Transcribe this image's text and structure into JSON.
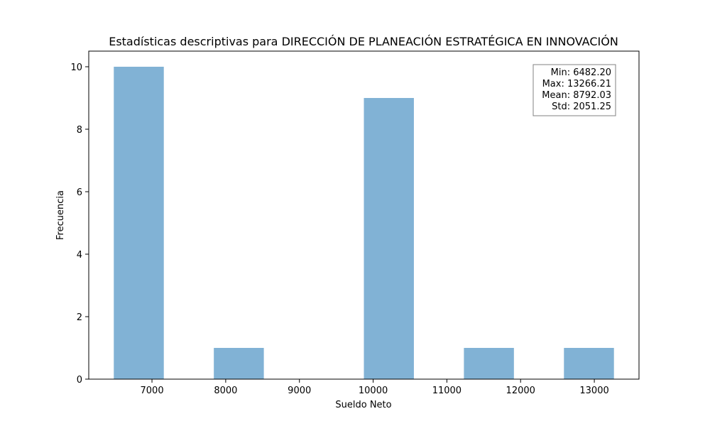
{
  "chart_data": {
    "type": "bar",
    "title": "Estadísticas descriptivas para DIRECCIÓN DE PLANEACIÓN ESTRATÉGICA EN INNOVACIÓN",
    "xlabel": "Sueldo Neto",
    "ylabel": "Frecuencia",
    "xlim": [
      6142.4,
      13606.0
    ],
    "ylim": [
      0,
      10.5
    ],
    "xticks": [
      7000,
      8000,
      9000,
      10000,
      11000,
      12000,
      13000
    ],
    "yticks": [
      0,
      2,
      4,
      6,
      8,
      10
    ],
    "bin_edges": [
      6482.2,
      7160.6,
      7839.0,
      8517.41,
      9195.81,
      9874.21,
      10552.61,
      11231.01,
      11909.41,
      12587.81,
      13266.21
    ],
    "counts": [
      10,
      0,
      1,
      0,
      0,
      9,
      0,
      1,
      0,
      1
    ],
    "bar_color": "#4c92c3",
    "bar_alpha": 0.7,
    "grid": false,
    "stats_box": {
      "placement": "top-right",
      "lines": [
        "Min: 6482.20",
        "Max: 13266.21",
        "Mean: 8792.03",
        "Std: 2051.25"
      ]
    }
  }
}
